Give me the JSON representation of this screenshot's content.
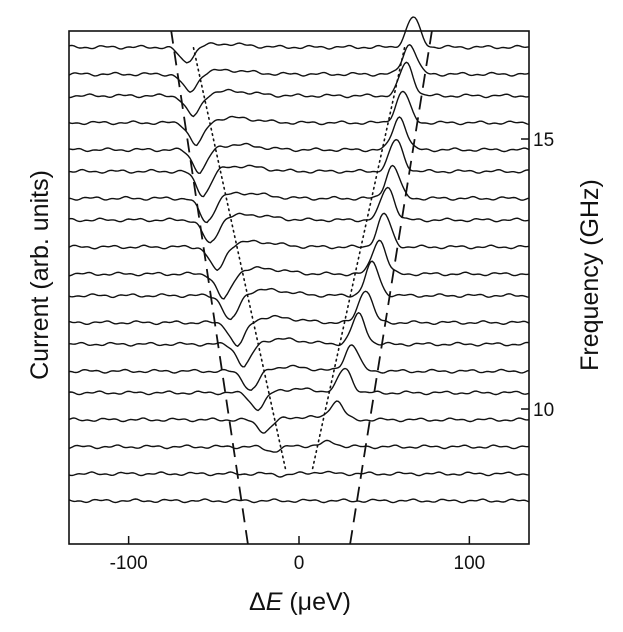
{
  "chart_data": {
    "type": "line",
    "title": "",
    "xlabel_prefix": "Δ",
    "xlabel_var": "E",
    "xlabel_unit": " (μeV)",
    "ylabel_left": "Current  (arb. units)",
    "ylabel_right": "Frequency (GHz)",
    "xlim": [
      -135,
      135
    ],
    "x_ticks": [
      -100,
      0,
      100
    ],
    "x_tick_labels": [
      "-100",
      "0",
      "100"
    ],
    "freq_ticks": [
      10,
      15
    ],
    "freq_tick_labels": [
      "10",
      "15"
    ],
    "freq_range": [
      7.5,
      17.0
    ],
    "trace_count": 19,
    "trace_frequencies_ghz": [
      8.3,
      8.8,
      9.3,
      9.8,
      10.3,
      10.7,
      11.2,
      11.6,
      12.1,
      12.5,
      13.0,
      13.5,
      13.9,
      14.4,
      14.8,
      15.3,
      15.8,
      16.2,
      16.7
    ],
    "peak_dE_uev": [
      5,
      12,
      18,
      22,
      27,
      31,
      35,
      39,
      43,
      47,
      50,
      52,
      55,
      57,
      59,
      61,
      63,
      65,
      67
    ],
    "peak_heights": [
      0,
      0.05,
      0.15,
      0.6,
      0.8,
      0.9,
      1.0,
      1.1,
      1.1,
      1.15,
      1.1,
      1.1,
      1.1,
      1.05,
      1.1,
      1.05,
      1.1,
      1.0,
      1.0
    ],
    "dip_dE_uev": [
      -5,
      -10,
      -15,
      -20,
      -24,
      -28,
      -32,
      -36,
      -40,
      -44,
      -48,
      -52,
      -54,
      -56,
      -58,
      -60,
      -62,
      -64,
      -66
    ],
    "dip_depths": [
      0,
      0.05,
      0.15,
      0.4,
      0.55,
      0.65,
      0.75,
      0.8,
      0.85,
      0.85,
      0.8,
      0.8,
      0.8,
      0.8,
      0.75,
      0.75,
      0.7,
      0.6,
      0.5
    ],
    "dotted_lines": [
      {
        "name": "",
        "points": [
          [
            -8,
            8.9
          ],
          [
            -62,
            16.7
          ]
        ]
      },
      {
        "name": "",
        "points": [
          [
            8,
            8.9
          ],
          [
            62,
            16.7
          ]
        ]
      }
    ],
    "dashed_lines": [
      {
        "name": "",
        "points": [
          [
            -30,
            7.5
          ],
          [
            -75,
            17.0
          ]
        ]
      },
      {
        "name": "",
        "points": [
          [
            30,
            7.5
          ],
          [
            78,
            17.0
          ]
        ]
      }
    ],
    "grid": false,
    "legend": "none"
  }
}
